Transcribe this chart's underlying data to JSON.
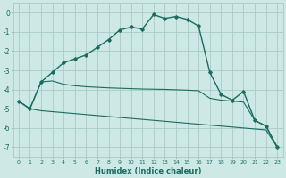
{
  "xlabel": "Humidex (Indice chaleur)",
  "bg_color": "#cde8e5",
  "grid_color": "#a8ccc9",
  "line_color": "#1a6b60",
  "ylim": [
    -7.5,
    0.5
  ],
  "xlim": [
    -0.5,
    23.5
  ],
  "yticks": [
    0,
    -1,
    -2,
    -3,
    -4,
    -5,
    -6,
    -7
  ],
  "xticks": [
    0,
    1,
    2,
    3,
    4,
    5,
    6,
    7,
    8,
    9,
    10,
    11,
    12,
    13,
    14,
    15,
    16,
    17,
    18,
    19,
    20,
    21,
    22,
    23
  ],
  "line1_x": [
    0,
    1,
    2,
    3,
    4,
    5,
    6,
    7,
    8,
    9,
    10,
    11,
    12,
    13,
    14,
    15,
    16,
    17,
    18,
    19,
    20,
    21,
    22,
    23
  ],
  "line1_y": [
    -4.6,
    -5.0,
    -3.6,
    -3.1,
    -2.6,
    -2.4,
    -2.2,
    -1.8,
    -1.4,
    -0.9,
    -0.75,
    -0.85,
    -0.1,
    -0.3,
    -0.2,
    -0.35,
    -0.7,
    -3.1,
    -4.25,
    -4.55,
    -4.1,
    -5.6,
    -5.9,
    -7.0
  ],
  "line2_x": [
    0,
    1,
    2,
    3,
    4,
    5,
    6,
    7,
    8,
    9,
    10,
    11,
    12,
    13,
    14,
    15,
    16,
    17,
    18,
    19,
    20,
    21,
    22,
    23
  ],
  "line2_y": [
    -4.6,
    -5.0,
    -3.6,
    -3.55,
    -3.72,
    -3.8,
    -3.85,
    -3.88,
    -3.91,
    -3.93,
    -3.95,
    -3.97,
    -3.98,
    -3.99,
    -4.01,
    -4.03,
    -4.06,
    -4.45,
    -4.55,
    -4.6,
    -4.65,
    -5.6,
    -5.9,
    -7.0
  ],
  "line3_x": [
    0,
    1,
    2,
    3,
    4,
    5,
    6,
    7,
    8,
    9,
    10,
    11,
    12,
    13,
    14,
    15,
    16,
    17,
    18,
    19,
    20,
    21,
    22,
    23
  ],
  "line3_y": [
    -4.6,
    -5.0,
    -5.1,
    -5.15,
    -5.2,
    -5.25,
    -5.3,
    -5.35,
    -5.4,
    -5.45,
    -5.5,
    -5.55,
    -5.6,
    -5.65,
    -5.7,
    -5.75,
    -5.8,
    -5.85,
    -5.9,
    -5.95,
    -6.0,
    -6.05,
    -6.1,
    -7.0
  ]
}
